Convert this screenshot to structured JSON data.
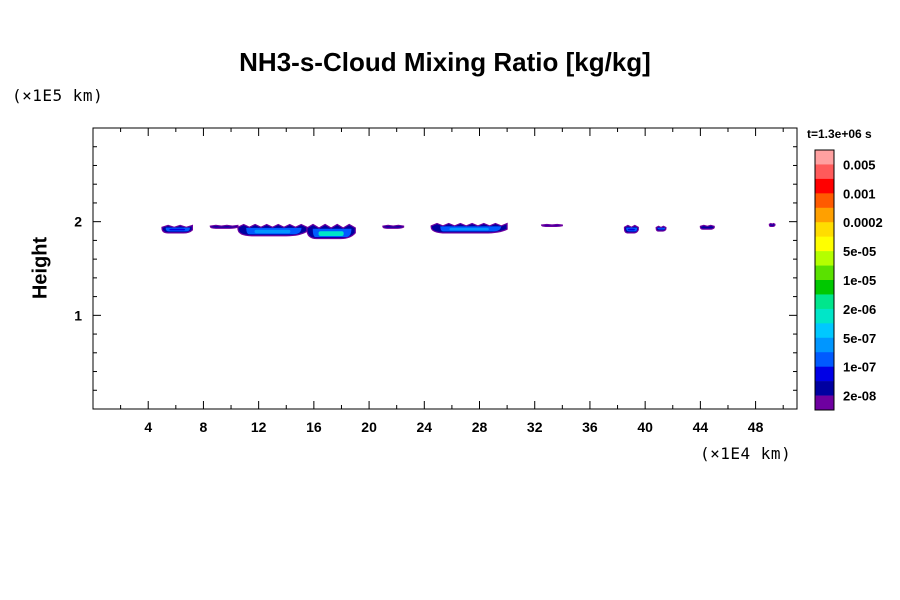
{
  "chart_data": {
    "type": "heatmap",
    "title": "NH3-s-Cloud Mixing Ratio [kg/kg]",
    "xlabel": "",
    "ylabel": "Height",
    "x_unit_label": "(×1E4 km)",
    "y_unit_label": "(×1E5 km)",
    "time_label": "t=1.3e+06 s",
    "xlim": [
      0,
      51
    ],
    "ylim": [
      0,
      3
    ],
    "x_ticks": [
      4,
      8,
      12,
      16,
      20,
      24,
      28,
      32,
      36,
      40,
      44,
      48
    ],
    "y_ticks": [
      1,
      2
    ],
    "colorbar": {
      "labels": [
        "0.005",
        "0.001",
        "0.0002",
        "5e-05",
        "1e-05",
        "2e-06",
        "5e-07",
        "1e-07",
        "2e-08"
      ],
      "colors": [
        "#ffa0a0",
        "#ff5a5a",
        "#ff0000",
        "#ff5a00",
        "#ffa000",
        "#ffdd00",
        "#ffff00",
        "#b4ff00",
        "#5ae100",
        "#00c800",
        "#00e68c",
        "#00e6c8",
        "#00c8ff",
        "#0096ff",
        "#005aff",
        "#0000e6",
        "#0000a0",
        "#6e00a0"
      ]
    },
    "cloud_patches": [
      {
        "x": [
          5.0,
          7.2
        ],
        "y": [
          1.88,
          1.96
        ],
        "level": "1e-07"
      },
      {
        "x": [
          8.5,
          10.5
        ],
        "y": [
          1.93,
          1.96
        ],
        "level": "2e-08"
      },
      {
        "x": [
          10.5,
          15.5
        ],
        "y": [
          1.85,
          1.97
        ],
        "level": "5e-07"
      },
      {
        "x": [
          15.5,
          19.0
        ],
        "y": [
          1.82,
          1.97
        ],
        "level": "2e-06"
      },
      {
        "x": [
          21.0,
          22.5
        ],
        "y": [
          1.93,
          1.96
        ],
        "level": "1e-07"
      },
      {
        "x": [
          24.5,
          30.0
        ],
        "y": [
          1.88,
          1.98
        ],
        "level": "5e-07"
      },
      {
        "x": [
          32.5,
          34.0
        ],
        "y": [
          1.95,
          1.97
        ],
        "level": "2e-08"
      },
      {
        "x": [
          38.5,
          39.5
        ],
        "y": [
          1.88,
          1.96
        ],
        "level": "1e-07"
      },
      {
        "x": [
          40.8,
          41.5
        ],
        "y": [
          1.9,
          1.95
        ],
        "level": "1e-07"
      },
      {
        "x": [
          44.0,
          45.0
        ],
        "y": [
          1.92,
          1.96
        ],
        "level": "1e-07"
      },
      {
        "x": [
          49.0,
          49.4
        ],
        "y": [
          1.95,
          1.98
        ],
        "level": "2e-08"
      }
    ]
  }
}
